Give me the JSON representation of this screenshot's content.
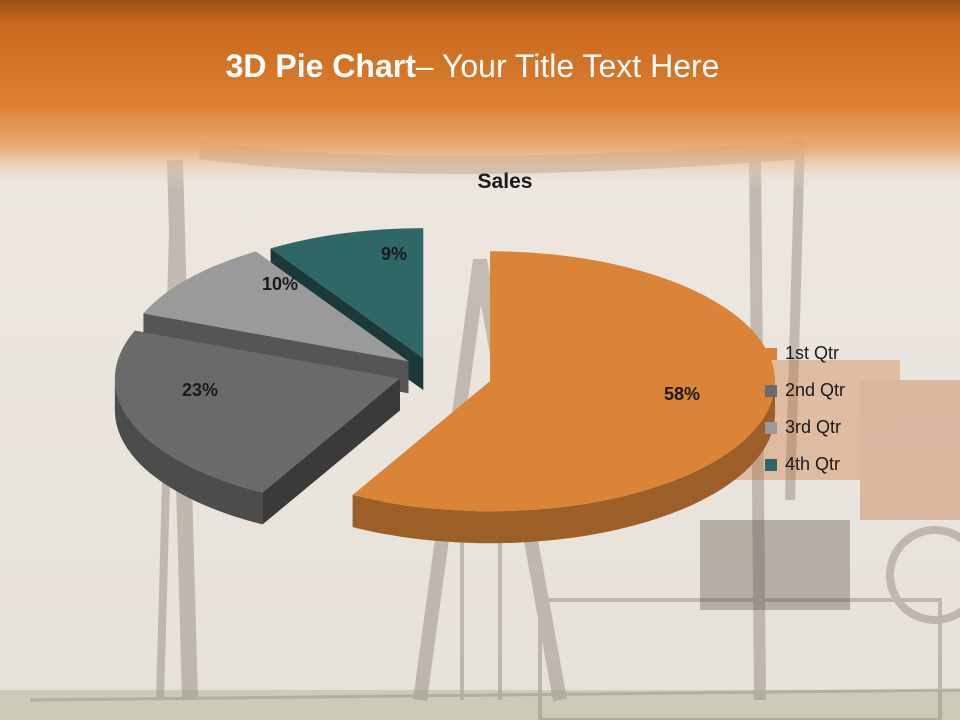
{
  "slide": {
    "title_bold": "3D Pie Chart",
    "title_rest": "– Your Title Text Here"
  },
  "colors": {
    "header": "#d97a2c",
    "background": "#ebe7e1"
  },
  "chart_data": {
    "type": "pie",
    "title": "Sales",
    "three_d": true,
    "exploded": true,
    "categories": [
      "1st Qtr",
      "2nd Qtr",
      "3rd Qtr",
      "4th Qtr"
    ],
    "values": [
      58,
      23,
      10,
      9
    ],
    "data_labels": [
      "58%",
      "23%",
      "10%",
      "9%"
    ],
    "colors": [
      "#d98436",
      "#6a6a6a",
      "#9a9a9a",
      "#2f6766"
    ],
    "legend_position": "right"
  }
}
